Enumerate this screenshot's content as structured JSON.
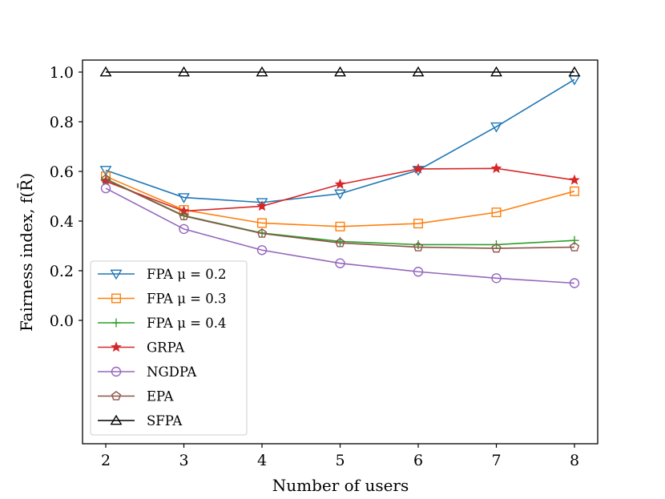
{
  "chart_data": {
    "type": "line",
    "title": "",
    "xlabel": "Number of users",
    "ylabel": "Fairness index, f(R̄)",
    "x": [
      2,
      3,
      4,
      5,
      6,
      7,
      8
    ],
    "xlim": [
      1.75,
      8.3
    ],
    "ylim": [
      -0.5,
      1.05
    ],
    "xticks": [
      2,
      3,
      4,
      5,
      6,
      7,
      8
    ],
    "yticks": [
      0.0,
      0.2,
      0.4,
      0.6,
      0.8,
      1.0
    ],
    "ytick_labels": [
      "0.0",
      "0.2",
      "0.4",
      "0.6",
      "0.8",
      "1.0"
    ],
    "grid": false,
    "legend_position": "lower-left",
    "series": [
      {
        "name": "FPA μ = 0.2",
        "color": "#1f77b4",
        "marker": "triangle-down",
        "values": [
          0.605,
          0.495,
          0.475,
          0.51,
          0.605,
          0.78,
          0.97
        ]
      },
      {
        "name": "FPA μ = 0.3",
        "color": "#ff7f0e",
        "marker": "square",
        "values": [
          0.58,
          0.445,
          0.392,
          0.378,
          0.39,
          0.435,
          0.52
        ]
      },
      {
        "name": "FPA μ = 0.4",
        "color": "#2ca02c",
        "marker": "plus",
        "values": [
          0.57,
          0.422,
          0.352,
          0.318,
          0.305,
          0.305,
          0.322
        ]
      },
      {
        "name": "GRPA",
        "color": "#d62728",
        "marker": "star",
        "values": [
          0.56,
          0.44,
          0.46,
          0.548,
          0.61,
          0.612,
          0.565
        ]
      },
      {
        "name": "NGDPA",
        "color": "#9467bd",
        "marker": "circle",
        "values": [
          0.532,
          0.368,
          0.283,
          0.23,
          0.196,
          0.17,
          0.15
        ]
      },
      {
        "name": "EPA",
        "color": "#8c564b",
        "marker": "pentagon",
        "values": [
          0.568,
          0.42,
          0.35,
          0.312,
          0.295,
          0.29,
          0.295
        ]
      },
      {
        "name": "SFPA",
        "color": "#000000",
        "marker": "triangle-up",
        "values": [
          1.0,
          1.0,
          1.0,
          1.0,
          1.0,
          1.0,
          1.0
        ]
      }
    ]
  }
}
